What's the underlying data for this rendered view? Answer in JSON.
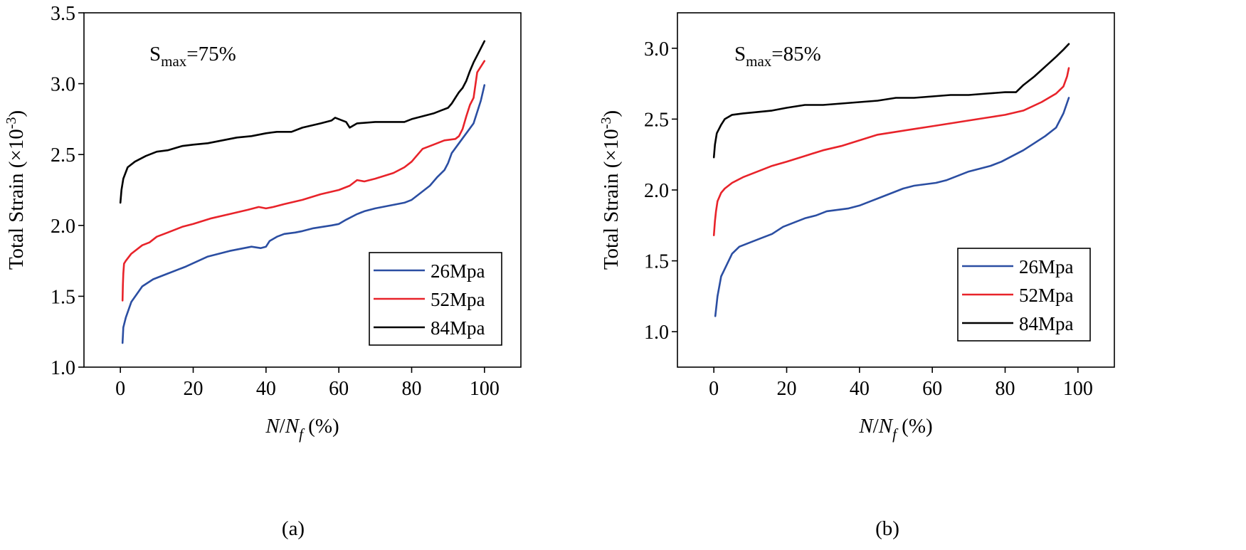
{
  "chart_data": [
    {
      "type": "line",
      "panel_label": "(a)",
      "annotation": {
        "base": "S",
        "sub": "max",
        "rest": "=75%"
      },
      "xlabel": {
        "prefix": "N",
        "slash": "/",
        "base": "N",
        "sub": "f",
        "unit": " (%)"
      },
      "ylabel": {
        "text": "Total Strain (×10",
        "sup": "-3",
        "close": ")"
      },
      "xlim": [
        -10,
        110
      ],
      "ylim": [
        1.0,
        3.5
      ],
      "xticks": [
        0,
        20,
        40,
        60,
        80,
        100
      ],
      "yticks": [
        1.0,
        1.5,
        2.0,
        2.5,
        3.0,
        3.5
      ],
      "xtick_labels": [
        "0",
        "20",
        "40",
        "60",
        "80",
        "100"
      ],
      "ytick_labels": [
        "1.0",
        "1.5",
        "2.0",
        "2.5",
        "3.0",
        "3.5"
      ],
      "legend_position": "bottom-right",
      "series": [
        {
          "name": "26Mpa",
          "color": "#2b4ea2",
          "x": [
            0.6,
            0.8,
            1.5,
            3,
            6,
            9,
            13,
            18,
            24,
            30,
            36,
            38.5,
            40,
            41,
            43,
            45,
            48,
            50,
            53,
            58,
            60,
            62,
            65,
            67,
            70,
            74,
            78,
            80,
            82,
            85,
            87,
            89,
            90,
            91,
            93,
            95,
            97,
            99,
            100
          ],
          "y": [
            1.17,
            1.28,
            1.35,
            1.46,
            1.57,
            1.62,
            1.66,
            1.71,
            1.78,
            1.82,
            1.85,
            1.84,
            1.85,
            1.89,
            1.92,
            1.94,
            1.95,
            1.96,
            1.98,
            2.0,
            2.01,
            2.04,
            2.08,
            2.1,
            2.12,
            2.14,
            2.16,
            2.18,
            2.22,
            2.28,
            2.34,
            2.39,
            2.44,
            2.51,
            2.58,
            2.65,
            2.72,
            2.88,
            2.99
          ]
        },
        {
          "name": "52Mpa",
          "color": "#e8232a",
          "x": [
            0.6,
            0.7,
            0.8,
            1.0,
            1.5,
            3,
            6,
            8,
            10,
            13,
            17,
            20,
            25,
            30,
            35,
            38,
            40,
            42,
            45,
            50,
            55,
            60,
            63,
            65,
            67,
            70,
            75,
            78,
            80,
            81,
            83,
            86,
            89,
            92,
            93,
            94,
            95,
            96,
            97,
            98,
            99,
            100
          ],
          "y": [
            1.47,
            1.58,
            1.66,
            1.73,
            1.75,
            1.8,
            1.86,
            1.88,
            1.92,
            1.95,
            1.99,
            2.01,
            2.05,
            2.08,
            2.11,
            2.13,
            2.12,
            2.13,
            2.15,
            2.18,
            2.22,
            2.25,
            2.28,
            2.32,
            2.31,
            2.33,
            2.37,
            2.41,
            2.45,
            2.48,
            2.54,
            2.57,
            2.6,
            2.61,
            2.63,
            2.68,
            2.77,
            2.85,
            2.9,
            3.08,
            3.12,
            3.16
          ]
        },
        {
          "name": "84Mpa",
          "color": "#000000",
          "x": [
            0,
            0.3,
            0.8,
            2,
            4,
            7,
            10,
            13,
            17,
            20,
            24,
            28,
            32,
            36,
            40,
            43,
            47,
            50,
            55,
            58,
            59,
            62,
            63,
            65,
            70,
            75,
            78,
            80,
            83,
            86,
            88,
            90,
            91,
            92,
            93,
            94,
            95,
            96,
            97,
            98,
            99,
            100
          ],
          "y": [
            2.16,
            2.25,
            2.33,
            2.41,
            2.45,
            2.49,
            2.52,
            2.53,
            2.56,
            2.57,
            2.58,
            2.6,
            2.62,
            2.63,
            2.65,
            2.66,
            2.66,
            2.69,
            2.72,
            2.74,
            2.76,
            2.73,
            2.69,
            2.72,
            2.73,
            2.73,
            2.73,
            2.75,
            2.77,
            2.79,
            2.81,
            2.83,
            2.86,
            2.9,
            2.94,
            2.97,
            3.02,
            3.09,
            3.15,
            3.2,
            3.25,
            3.3
          ]
        }
      ]
    },
    {
      "type": "line",
      "panel_label": "(b)",
      "annotation": {
        "base": "S",
        "sub": "max",
        "rest": "=85%"
      },
      "xlabel": {
        "prefix": "N",
        "slash": "/",
        "base": "N",
        "sub": "f",
        "unit": " (%)"
      },
      "ylabel": {
        "text": "Total Strain (×10",
        "sup": "-3",
        "close": ")"
      },
      "xlim": [
        -10,
        110
      ],
      "ylim": [
        0.75,
        3.25
      ],
      "xticks": [
        0,
        20,
        40,
        60,
        80,
        100
      ],
      "yticks": [
        1.0,
        1.5,
        2.0,
        2.5,
        3.0
      ],
      "xtick_labels": [
        "0",
        "20",
        "40",
        "60",
        "80",
        "100"
      ],
      "ytick_labels": [
        "1.0",
        "1.5",
        "2.0",
        "2.5",
        "3.0"
      ],
      "legend_position": "bottom-right",
      "series": [
        {
          "name": "26Mpa",
          "color": "#2b4ea2",
          "x": [
            0.4,
            1,
            2,
            3.5,
            5,
            7,
            10,
            13,
            16,
            19,
            22,
            25,
            28,
            31,
            34,
            37,
            40,
            43,
            46,
            49,
            52,
            55,
            58,
            61,
            64,
            67,
            70,
            73,
            76,
            79,
            82,
            85,
            88,
            91,
            94,
            96,
            97.5
          ],
          "y": [
            1.11,
            1.25,
            1.39,
            1.47,
            1.55,
            1.6,
            1.63,
            1.66,
            1.69,
            1.74,
            1.77,
            1.8,
            1.82,
            1.85,
            1.86,
            1.87,
            1.89,
            1.92,
            1.95,
            1.98,
            2.01,
            2.03,
            2.04,
            2.05,
            2.07,
            2.1,
            2.13,
            2.15,
            2.17,
            2.2,
            2.24,
            2.28,
            2.33,
            2.38,
            2.44,
            2.54,
            2.65
          ]
        },
        {
          "name": "52Mpa",
          "color": "#e8232a",
          "x": [
            0,
            0.3,
            0.6,
            1,
            2,
            3,
            5,
            8,
            12,
            16,
            20,
            25,
            30,
            35,
            40,
            45,
            50,
            55,
            60,
            65,
            70,
            75,
            80,
            85,
            90,
            94,
            96,
            97,
            97.5
          ],
          "y": [
            1.68,
            1.78,
            1.85,
            1.92,
            1.98,
            2.01,
            2.05,
            2.09,
            2.13,
            2.17,
            2.2,
            2.24,
            2.28,
            2.31,
            2.35,
            2.39,
            2.41,
            2.43,
            2.45,
            2.47,
            2.49,
            2.51,
            2.53,
            2.56,
            2.62,
            2.68,
            2.73,
            2.8,
            2.86
          ]
        },
        {
          "name": "84Mpa",
          "color": "#000000",
          "x": [
            0,
            0.3,
            0.8,
            2,
            3,
            5,
            8,
            12,
            16,
            20,
            25,
            30,
            35,
            40,
            45,
            50,
            55,
            60,
            65,
            70,
            75,
            80,
            83,
            85,
            88,
            91,
            94,
            96,
            97.5
          ],
          "y": [
            2.23,
            2.32,
            2.4,
            2.46,
            2.5,
            2.53,
            2.54,
            2.55,
            2.56,
            2.58,
            2.6,
            2.6,
            2.61,
            2.62,
            2.63,
            2.65,
            2.65,
            2.66,
            2.67,
            2.67,
            2.68,
            2.69,
            2.69,
            2.74,
            2.8,
            2.87,
            2.94,
            2.99,
            3.03
          ]
        }
      ]
    }
  ]
}
